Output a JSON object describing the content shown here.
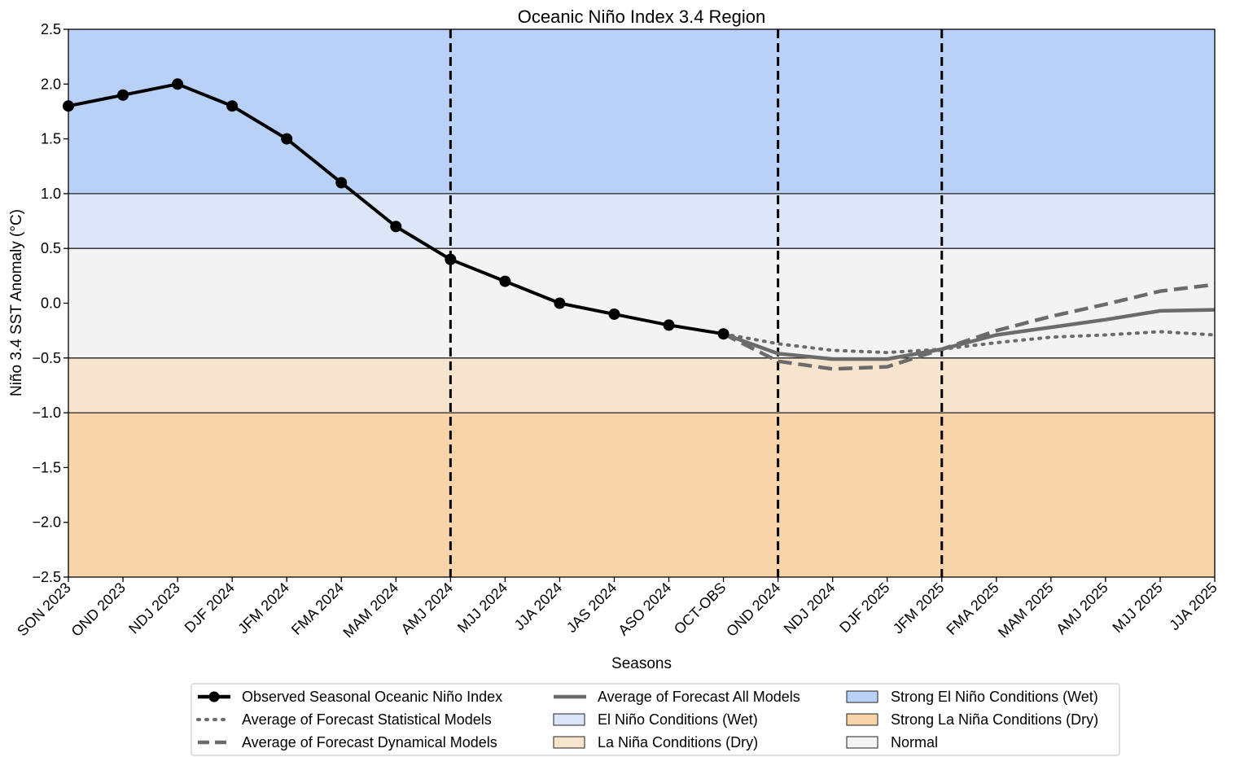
{
  "chart_data": {
    "type": "line",
    "title": "Oceanic Niño Index 3.4 Region",
    "xlabel": "Seasons",
    "ylabel": "Niño 3.4 SST Anomaly (°C)",
    "ylim": [
      -2.5,
      2.5
    ],
    "yticks": [
      2.5,
      2.0,
      1.5,
      1.0,
      0.5,
      0.0,
      -0.5,
      -1.0,
      -1.5,
      -2.0,
      -2.5
    ],
    "ytick_labels": [
      "2.5",
      "2.0",
      "1.5",
      "1.0",
      "0.5",
      "0.0",
      "−0.5",
      "−1.0",
      "−1.5",
      "−2.0",
      "−2.5"
    ],
    "categories": [
      "SON 2023",
      "OND 2023",
      "NDJ 2023",
      "DJF 2024",
      "JFM 2024",
      "FMA 2024",
      "MAM 2024",
      "AMJ 2024",
      "MJJ 2024",
      "JJA 2024",
      "JAS 2024",
      "ASO 2024",
      "OCT-OBS",
      "OND 2024",
      "NDJ 2024",
      "DJF 2025",
      "JFM 2025",
      "FMA 2025",
      "MAM 2025",
      "AMJ 2025",
      "MJJ 2025",
      "JJA 2025"
    ],
    "bands": [
      {
        "name": "Strong El Niño Conditions (Wet)",
        "from": 1.0,
        "to": 2.5,
        "color": "#b9d0f7"
      },
      {
        "name": "El Niño Conditions (Wet)",
        "from": 0.5,
        "to": 1.0,
        "color": "#dde6f8"
      },
      {
        "name": "Normal",
        "from": -0.5,
        "to": 0.5,
        "color": "#f3f3f3"
      },
      {
        "name": "La Niña Conditions (Dry)",
        "from": -1.0,
        "to": -0.5,
        "color": "#f7e4cf"
      },
      {
        "name": "Strong La Niña Conditions (Dry)",
        "from": -2.5,
        "to": -1.0,
        "color": "#f8d5a8"
      }
    ],
    "band_lines": [
      1.0,
      0.5,
      -0.5,
      -1.0
    ],
    "vertical_lines": [
      "AMJ 2024",
      "OND 2024",
      "JFM 2025"
    ],
    "series": [
      {
        "name": "Observed Seasonal Oceanic Niño Index",
        "style": "solid-marker",
        "color": "#000000",
        "x": [
          "SON 2023",
          "OND 2023",
          "NDJ 2023",
          "DJF 2024",
          "JFM 2024",
          "FMA 2024",
          "MAM 2024",
          "AMJ 2024",
          "MJJ 2024",
          "JJA 2024",
          "JAS 2024",
          "ASO 2024",
          "OCT-OBS"
        ],
        "values": [
          1.8,
          1.9,
          2.0,
          1.8,
          1.5,
          1.1,
          0.7,
          0.4,
          0.2,
          0.0,
          -0.1,
          -0.2,
          -0.28
        ]
      },
      {
        "name": "Average of Forecast Statistical Models",
        "style": "dotted",
        "color": "#6b6b6b",
        "x": [
          "OCT-OBS",
          "OND 2024",
          "NDJ 2024",
          "DJF 2025",
          "JFM 2025",
          "FMA 2025",
          "MAM 2025",
          "AMJ 2025",
          "MJJ 2025",
          "JJA 2025"
        ],
        "values": [
          -0.28,
          -0.37,
          -0.43,
          -0.45,
          -0.42,
          -0.36,
          -0.31,
          -0.29,
          -0.26,
          -0.29
        ]
      },
      {
        "name": "Average of Forecast Dynamical Models",
        "style": "dashed",
        "color": "#6b6b6b",
        "x": [
          "OCT-OBS",
          "OND 2024",
          "NDJ 2024",
          "DJF 2025",
          "JFM 2025",
          "FMA 2025",
          "MAM 2025",
          "AMJ 2025",
          "MJJ 2025",
          "JJA 2025"
        ],
        "values": [
          -0.28,
          -0.53,
          -0.6,
          -0.58,
          -0.42,
          -0.25,
          -0.12,
          -0.01,
          0.11,
          0.17
        ]
      },
      {
        "name": "Average of Forecast All Models",
        "style": "solid",
        "color": "#6b6b6b",
        "x": [
          "OCT-OBS",
          "OND 2024",
          "NDJ 2024",
          "DJF 2025",
          "JFM 2025",
          "FMA 2025",
          "MAM 2025",
          "AMJ 2025",
          "MJJ 2025",
          "JJA 2025"
        ],
        "values": [
          -0.28,
          -0.46,
          -0.51,
          -0.51,
          -0.42,
          -0.29,
          -0.22,
          -0.15,
          -0.07,
          -0.06
        ]
      }
    ],
    "grid": false,
    "legend": {
      "placement": "bottom-center",
      "entries": [
        {
          "label": "Observed Seasonal Oceanic Niño Index",
          "kind": "line-marker",
          "color": "#000000"
        },
        {
          "label": "Average of Forecast Statistical Models",
          "kind": "dotted",
          "color": "#6b6b6b"
        },
        {
          "label": "Average of Forecast Dynamical Models",
          "kind": "dashed",
          "color": "#6b6b6b"
        },
        {
          "label": "Average of Forecast All Models",
          "kind": "solid",
          "color": "#6b6b6b"
        },
        {
          "label": "El Niño Conditions (Wet)",
          "kind": "patch",
          "color": "#dde6f8"
        },
        {
          "label": "La Niña Conditions (Dry)",
          "kind": "patch",
          "color": "#f7e4cf"
        },
        {
          "label": "Strong El Niño Conditions (Wet)",
          "kind": "patch",
          "color": "#b9d0f7"
        },
        {
          "label": "Strong La Niña Conditions (Dry)",
          "kind": "patch",
          "color": "#f8d5a8"
        },
        {
          "label": "Normal",
          "kind": "patch",
          "color": "#f3f3f3"
        }
      ]
    }
  }
}
